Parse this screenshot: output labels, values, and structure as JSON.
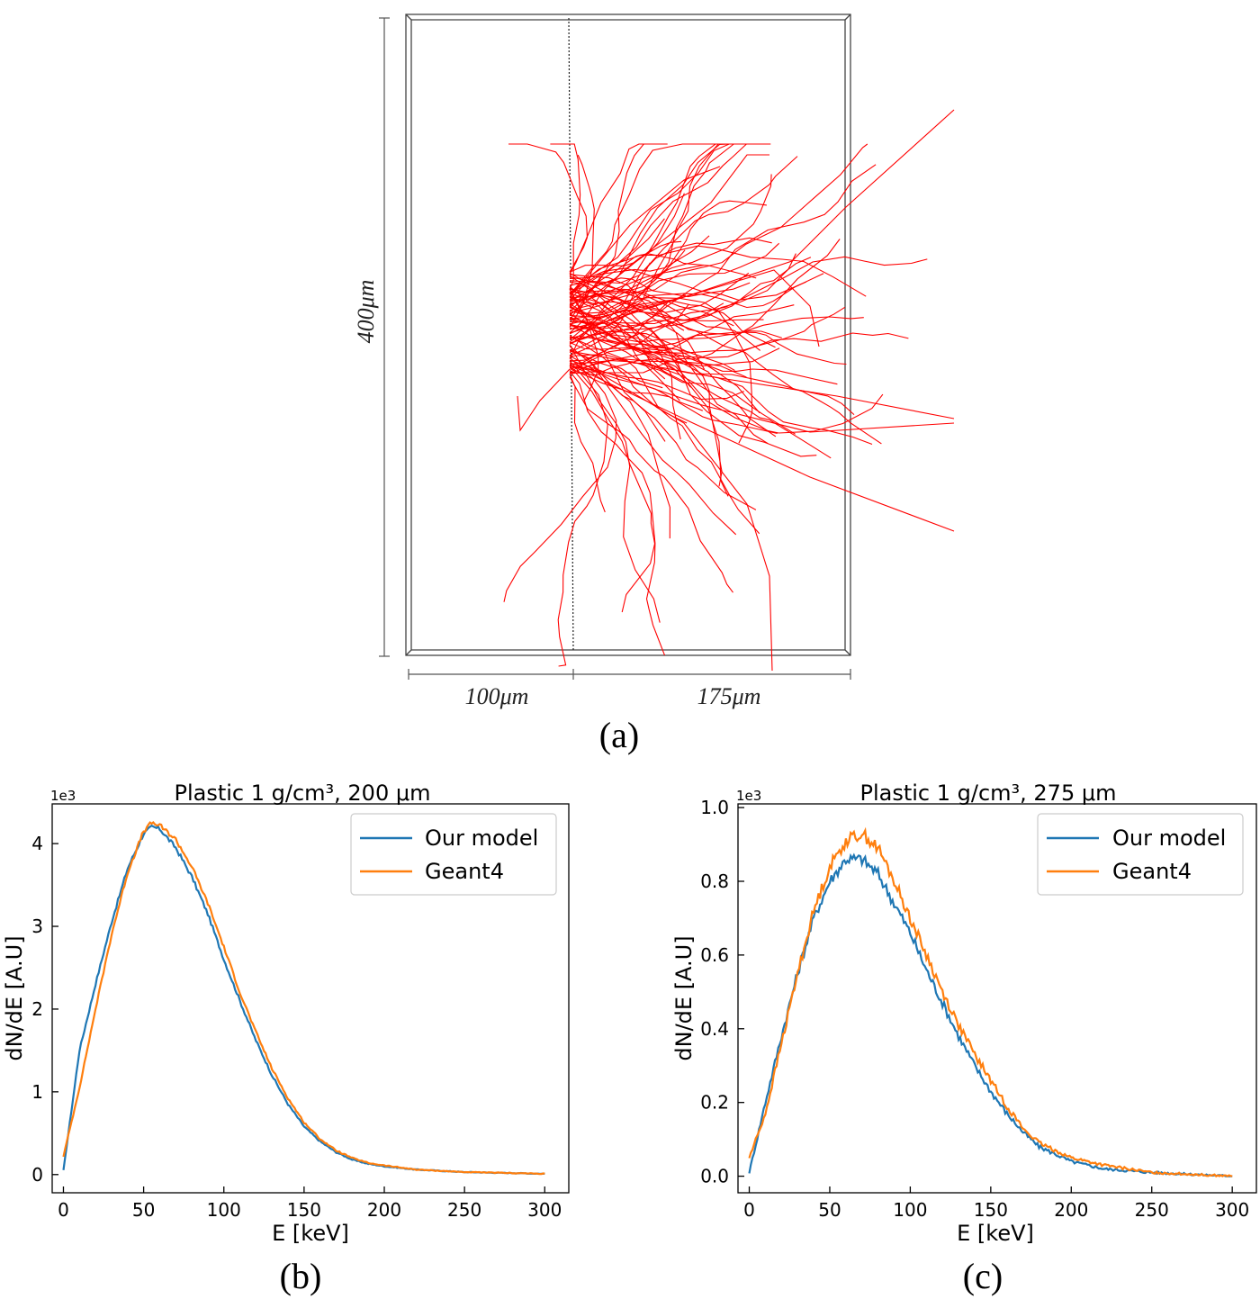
{
  "panel_a": {
    "caption": "(a)",
    "dim_height": "400μm",
    "dim_left": "100μm",
    "dim_right": "175μm",
    "track_color": "#ff0000",
    "box_color": "#444444"
  },
  "colors": {
    "our_model": "#1f77b4",
    "geant4": "#ff7f0e"
  },
  "chart_data": [
    {
      "type": "line",
      "caption": "(b)",
      "title": "Plastic 1 g/cm³, 200 μm",
      "xlabel": "E [keV]",
      "ylabel": "dN/dE [A.U]",
      "offset_text": "1e3",
      "xlim": [
        -7,
        315
      ],
      "ylim": [
        -0.22,
        4.48
      ],
      "xticks": [
        0,
        50,
        100,
        150,
        200,
        250,
        300
      ],
      "yticks": [
        0,
        1,
        2,
        3,
        4
      ],
      "ytick_labels": [
        "0",
        "1",
        "2",
        "3",
        "4"
      ],
      "legend": "top-right",
      "grid": false,
      "x": [
        0,
        10,
        20,
        30,
        40,
        50,
        55,
        60,
        70,
        80,
        90,
        100,
        110,
        120,
        130,
        140,
        150,
        160,
        170,
        180,
        190,
        200,
        220,
        250,
        300
      ],
      "series": [
        {
          "name": "Our model",
          "values": [
            0.05,
            1.5,
            2.3,
            3.05,
            3.7,
            4.12,
            4.2,
            4.18,
            3.95,
            3.6,
            3.15,
            2.6,
            2.1,
            1.62,
            1.2,
            0.85,
            0.58,
            0.4,
            0.27,
            0.18,
            0.13,
            0.1,
            0.06,
            0.03,
            0.01
          ]
        },
        {
          "name": "Geant4",
          "values": [
            0.22,
            1.05,
            2.0,
            2.9,
            3.65,
            4.15,
            4.25,
            4.22,
            4.05,
            3.72,
            3.28,
            2.75,
            2.2,
            1.72,
            1.28,
            0.92,
            0.63,
            0.43,
            0.29,
            0.2,
            0.14,
            0.11,
            0.06,
            0.03,
            0.01
          ]
        }
      ]
    },
    {
      "type": "line",
      "caption": "(c)",
      "title": "Plastic 1 g/cm³, 275 μm",
      "xlabel": "E [keV]",
      "ylabel": "dN/dE [A.U]",
      "offset_text": "1e3",
      "xlim": [
        -7,
        315
      ],
      "ylim": [
        -0.045,
        1.01
      ],
      "xticks": [
        0,
        50,
        100,
        150,
        200,
        250,
        300
      ],
      "yticks": [
        0.0,
        0.2,
        0.4,
        0.6,
        0.8,
        1.0
      ],
      "ytick_labels": [
        "0.0",
        "0.2",
        "0.4",
        "0.6",
        "0.8",
        "1.0"
      ],
      "legend": "top-right",
      "grid": false,
      "x": [
        0,
        10,
        20,
        30,
        40,
        50,
        60,
        70,
        80,
        90,
        100,
        110,
        120,
        130,
        140,
        150,
        160,
        170,
        180,
        190,
        200,
        220,
        250,
        300
      ],
      "series": [
        {
          "name": "Our model",
          "values": [
            0.01,
            0.2,
            0.38,
            0.55,
            0.7,
            0.8,
            0.86,
            0.86,
            0.82,
            0.74,
            0.66,
            0.56,
            0.47,
            0.38,
            0.3,
            0.23,
            0.17,
            0.12,
            0.08,
            0.06,
            0.04,
            0.02,
            0.01,
            0.0
          ]
        },
        {
          "name": "Geant4",
          "values": [
            0.05,
            0.17,
            0.36,
            0.55,
            0.72,
            0.84,
            0.91,
            0.93,
            0.89,
            0.8,
            0.7,
            0.6,
            0.5,
            0.41,
            0.33,
            0.26,
            0.19,
            0.13,
            0.09,
            0.07,
            0.05,
            0.03,
            0.01,
            0.0
          ]
        }
      ]
    }
  ]
}
